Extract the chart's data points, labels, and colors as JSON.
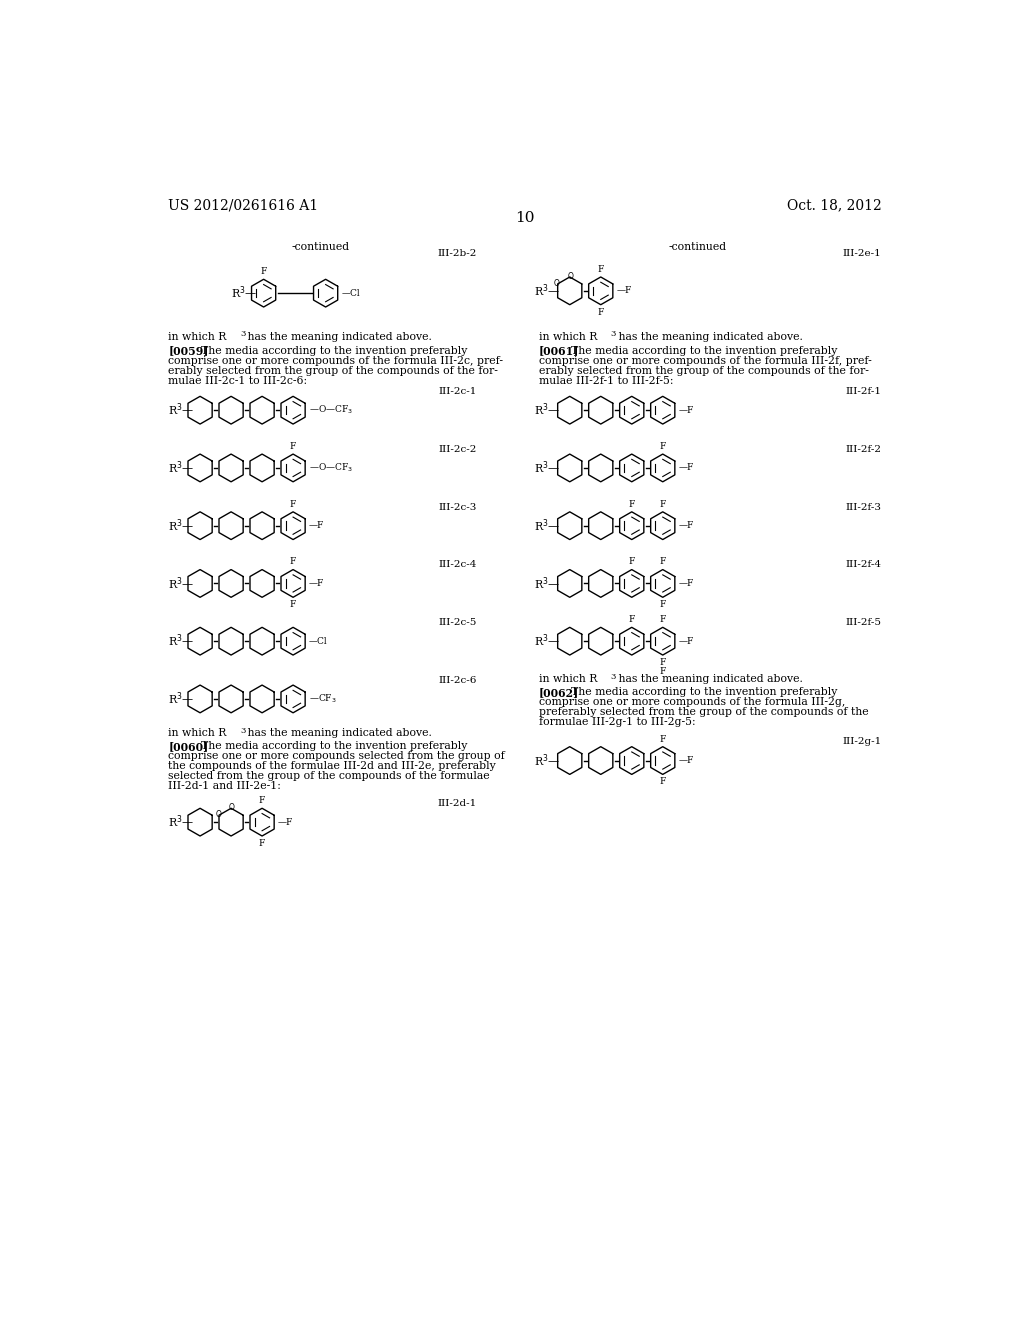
{
  "page_header_left": "US 2012/0261616 A1",
  "page_header_right": "Oct. 18, 2012",
  "page_number": "10",
  "bg_color": "#ffffff",
  "text_color": "#000000",
  "font_size_header": 10,
  "font_size_body": 7.8,
  "font_size_label": 7.5,
  "font_size_small": 6.5
}
